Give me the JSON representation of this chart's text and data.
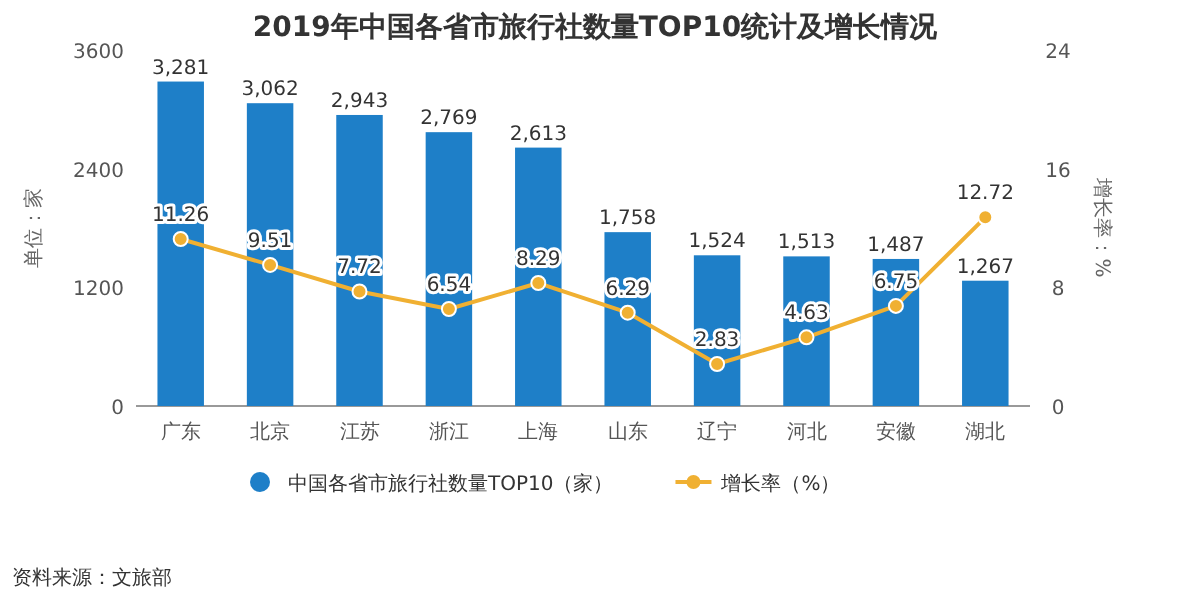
{
  "chart_data": {
    "type": "bar",
    "title": "2019年中国各省市旅行社数量TOP10统计及增长情况",
    "categories": [
      "广东",
      "北京",
      "江苏",
      "浙江",
      "上海",
      "山东",
      "辽宁",
      "河北",
      "安徽",
      "湖北"
    ],
    "series": [
      {
        "name": "中国各省市旅行社数量TOP10（家）",
        "color": "#1e7fc8",
        "values": [
          3281,
          3062,
          2943,
          2769,
          2613,
          1758,
          1524,
          1513,
          1487,
          1267
        ],
        "value_labels": [
          "3,281",
          "3,062",
          "2,943",
          "2,769",
          "2,613",
          "1,758",
          "1,524",
          "1,513",
          "1,487",
          "1,267"
        ]
      },
      {
        "name": "增长率（%）",
        "type": "line",
        "axis": "y2",
        "color": "#f0b032",
        "marker": "circle",
        "values": [
          11.26,
          9.51,
          7.72,
          6.54,
          8.29,
          6.29,
          2.83,
          4.63,
          6.75,
          12.72
        ],
        "value_labels": [
          "11.26",
          "9.51",
          "7.72",
          "6.54",
          "8.29",
          "6.29",
          "2.83",
          "4.63",
          "6.75",
          "12.72"
        ]
      }
    ],
    "ylabel": "单位：家",
    "y2label": "增长率：%",
    "ylim": [
      0,
      3600
    ],
    "yticks": [
      0,
      1200,
      2400,
      3600
    ],
    "y2lim": [
      0,
      24
    ],
    "y2ticks": [
      0,
      8,
      16,
      24
    ],
    "legend": "bottom",
    "annotations": [
      "资料来源：文旅部"
    ]
  }
}
